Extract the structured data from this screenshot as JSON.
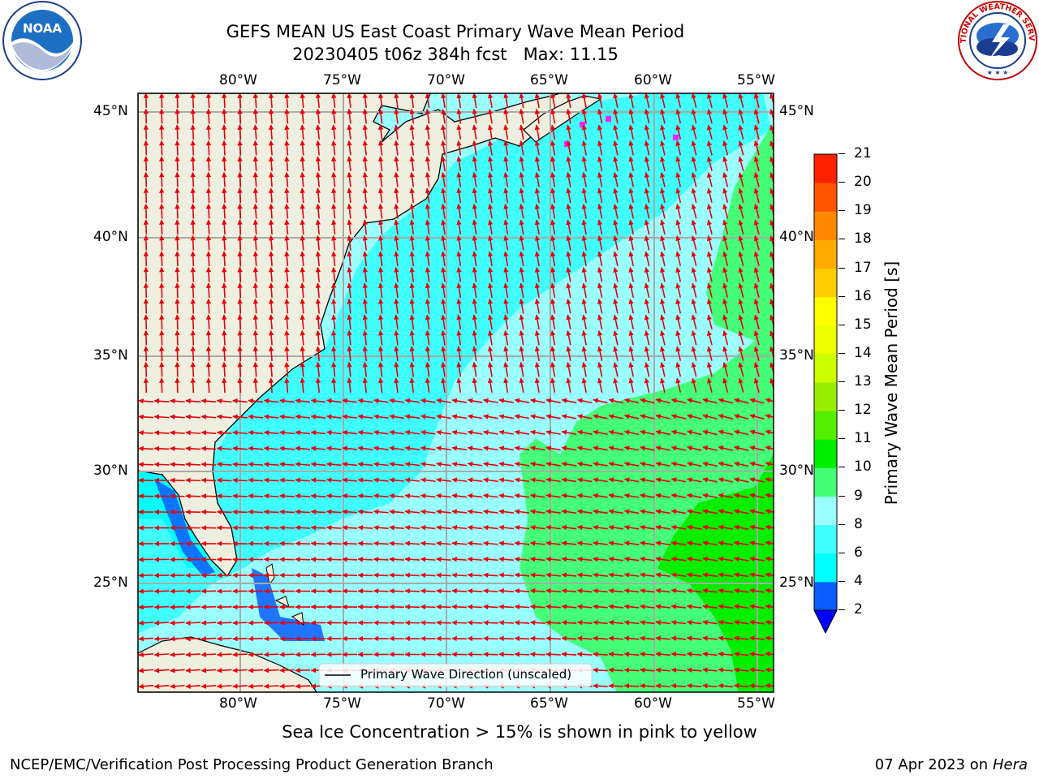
{
  "header": {
    "title_line1": "GEFS MEAN US East Coast Primary Wave Mean Period",
    "title_line2": "20230405 t06z 384h fcst   Max: 11.15"
  },
  "logos": {
    "left": {
      "name": "NOAA",
      "text": "NOAA"
    },
    "right": {
      "name": "National Weather Service",
      "ring_text": "NATIONAL WEATHER SERVICE"
    }
  },
  "map": {
    "lon_ticks": [
      "80°W",
      "75°W",
      "70°W",
      "65°W",
      "60°W",
      "55°W"
    ],
    "lat_ticks": [
      "45°N",
      "40°N",
      "35°N",
      "30°N",
      "25°N"
    ],
    "legend_label": "Primary Wave Direction (unscaled)",
    "colors": {
      "land": "#efefdf",
      "arrow": "#e8000b",
      "ice_marker": "#ff20ff",
      "grid": "#a9a9a9"
    }
  },
  "colorbar": {
    "label": "Primary Wave Mean Period [s]",
    "ticks": [
      "2",
      "4",
      "6",
      "8",
      "9",
      "10",
      "11",
      "12",
      "13",
      "14",
      "15",
      "16",
      "17",
      "18",
      "19",
      "20",
      "21"
    ],
    "colors": [
      "#0a5cff",
      "#00ffff",
      "#40ffff",
      "#99ffff",
      "#44ff77",
      "#00ee00",
      "#55ee00",
      "#99ee00",
      "#ccff00",
      "#eeff00",
      "#ffff00",
      "#ffcc00",
      "#ffaa00",
      "#ff8800",
      "#ff5500",
      "#ff2200"
    ],
    "under_color": "#0000ff"
  },
  "footer": {
    "note": "Sea Ice Concentration > 15% is shown in pink to yellow",
    "left": "NCEP/EMC/Verification Post Processing Product Generation Branch",
    "right_date": "07 Apr 2023 on ",
    "right_host": "Hera"
  }
}
